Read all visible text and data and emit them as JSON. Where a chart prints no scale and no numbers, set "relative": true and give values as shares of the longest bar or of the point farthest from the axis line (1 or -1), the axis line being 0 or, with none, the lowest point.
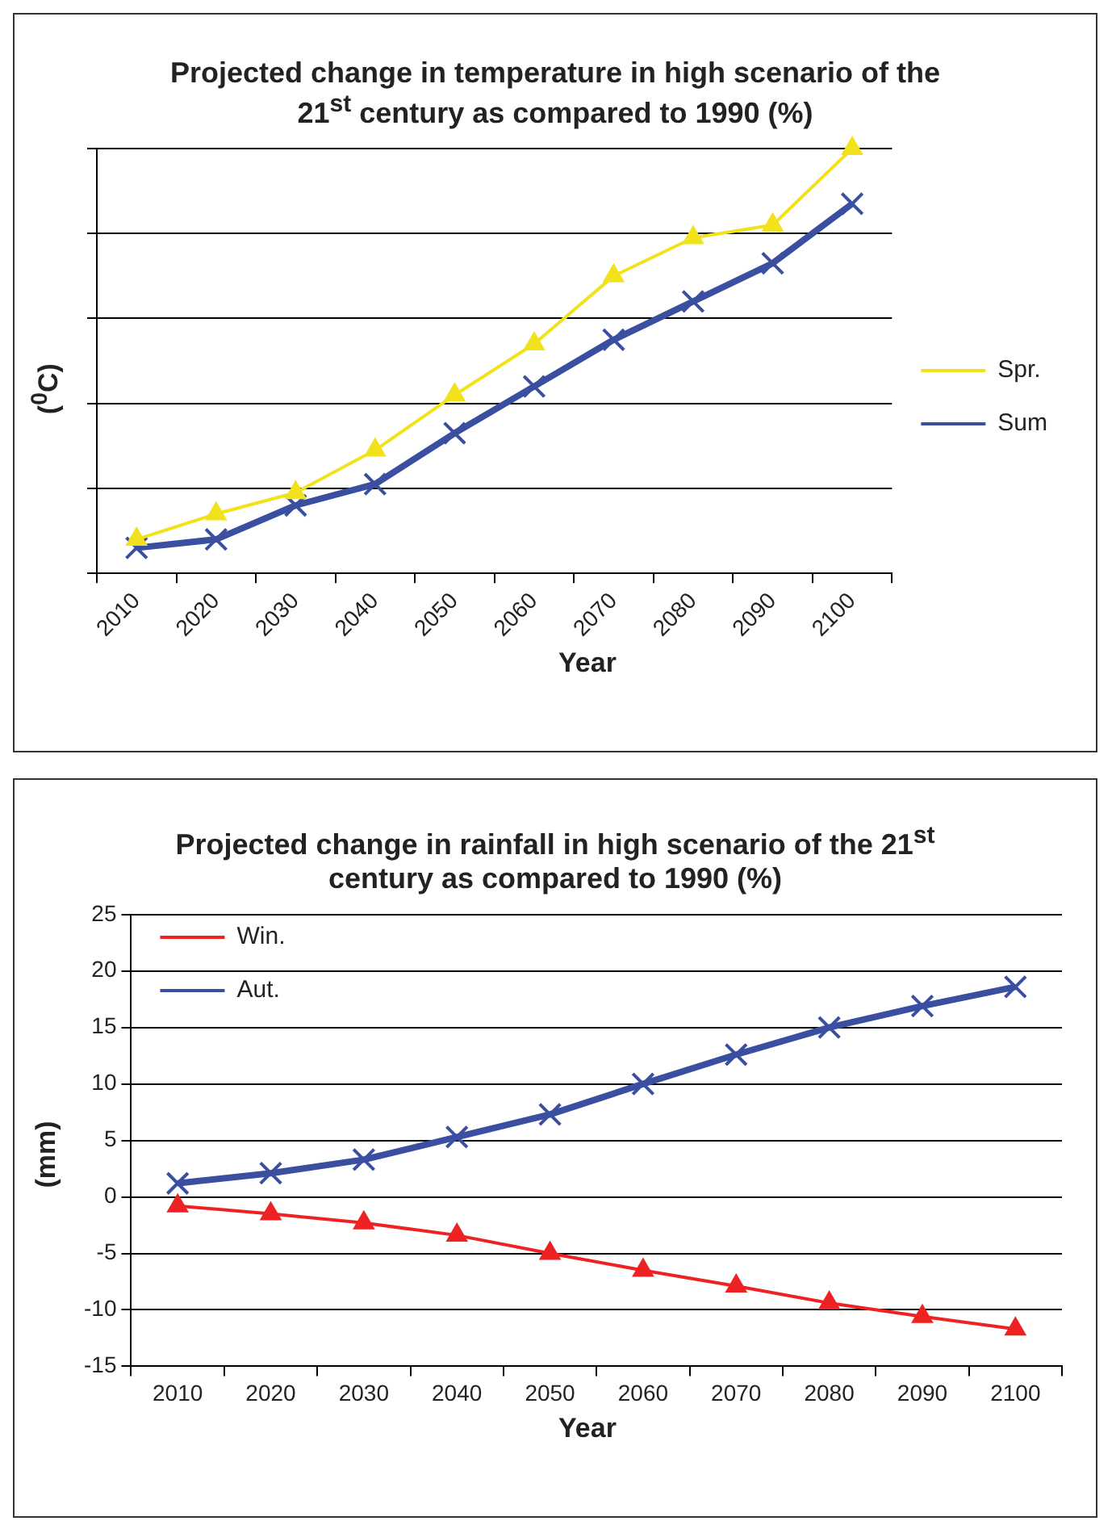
{
  "chart_data": [
    {
      "type": "line",
      "title": "Projected change in  temperature in high scenario of the 21$^{st}$ century  as compared to 1990 (%)",
      "xlabel": "Year",
      "ylabel": "($^{0}$C)",
      "categories": [
        "2010",
        "2020",
        "2030",
        "2040",
        "2050",
        "2060",
        "2070",
        "2080",
        "2090",
        "2100"
      ],
      "relative": true,
      "grid": "y",
      "legend": "right",
      "series": [
        {
          "name": "Spr.",
          "color": "#f2e21c",
          "marker": "triangle",
          "values": [
            0.08,
            0.14,
            0.19,
            0.29,
            0.42,
            0.54,
            0.7,
            0.79,
            0.82,
            1.0
          ]
        },
        {
          "name": "Sum",
          "color": "#3a4fa0",
          "marker": "cross",
          "values": [
            0.06,
            0.08,
            0.16,
            0.21,
            0.33,
            0.44,
            0.55,
            0.64,
            0.73,
            0.87
          ]
        }
      ]
    },
    {
      "type": "line",
      "title": "Projected change in  rainfall in high scenario of the 21$^{st}$ century  as compared to 1990 (%)",
      "xlabel": "Year",
      "ylabel": "(mm)",
      "categories": [
        "2010",
        "2020",
        "2030",
        "2040",
        "2050",
        "2060",
        "2070",
        "2080",
        "2090",
        "2100"
      ],
      "ylim": [
        -15,
        25
      ],
      "yticks": [
        -15,
        -10,
        -5,
        0,
        5,
        10,
        15,
        20,
        25
      ],
      "grid": "y",
      "legend": "top left",
      "series": [
        {
          "name": "Win.",
          "color": "#ee2222",
          "marker": "triangle",
          "values": [
            -0.8,
            -1.5,
            -2.3,
            -3.4,
            -5.0,
            -6.5,
            -7.9,
            -9.4,
            -10.6,
            -11.7
          ]
        },
        {
          "name": "Aut.",
          "color": "#3a4fa0",
          "marker": "cross",
          "values": [
            1.2,
            2.1,
            3.3,
            5.3,
            7.3,
            10.0,
            12.6,
            15.0,
            16.9,
            18.6
          ]
        }
      ]
    }
  ]
}
